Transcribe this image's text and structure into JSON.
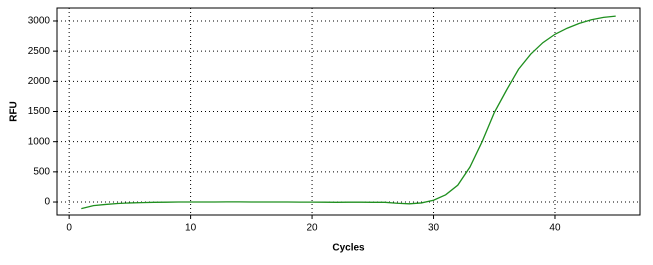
{
  "chart_data": {
    "type": "line",
    "x_label": "Cycles",
    "y_label": "RFU",
    "x": [
      1,
      2,
      3,
      4,
      5,
      6,
      7,
      8,
      9,
      10,
      11,
      12,
      13,
      14,
      15,
      16,
      17,
      18,
      19,
      20,
      21,
      22,
      23,
      24,
      25,
      26,
      27,
      28,
      29,
      30,
      31,
      32,
      33,
      34,
      35,
      36,
      37,
      38,
      39,
      40,
      41,
      42,
      43,
      44,
      45
    ],
    "series": [
      {
        "color": "#1f8f1f",
        "values": [
          -110,
          -60,
          -40,
          -25,
          -15,
          -10,
          -5,
          -3,
          0,
          0,
          0,
          0,
          2,
          2,
          0,
          0,
          0,
          0,
          -2,
          -2,
          -3,
          -5,
          -3,
          -3,
          -5,
          -5,
          -20,
          -30,
          -15,
          30,
          120,
          280,
          580,
          1000,
          1480,
          1850,
          2200,
          2450,
          2640,
          2780,
          2880,
          2960,
          3020,
          3060,
          3080
        ]
      }
    ],
    "xlim": [
      -1,
      47
    ],
    "ylim": [
      -215,
      3215
    ],
    "xticks": [
      0,
      10,
      20,
      30,
      40
    ],
    "yticks": [
      0,
      500,
      1000,
      1500,
      2000,
      2500,
      3000
    ],
    "grid": true
  }
}
